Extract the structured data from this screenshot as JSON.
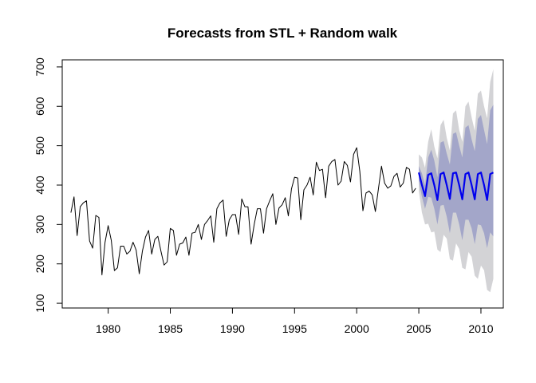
{
  "chart_data": {
    "type": "line",
    "title": "Forecasts from STL +  Random walk",
    "xlabel": "",
    "ylabel": "",
    "xlim": [
      1976.3,
      2011.8
    ],
    "ylim": [
      88,
      718
    ],
    "x_ticks": [
      1980,
      1985,
      1990,
      1995,
      2000,
      2005,
      2010
    ],
    "y_ticks": [
      100,
      200,
      300,
      400,
      500,
      600,
      700
    ],
    "legend": "none",
    "grid": false,
    "frequency": 4,
    "series": [
      {
        "start": 1977.0,
        "color": "#000000",
        "values": [
          330,
          370,
          272,
          345,
          355,
          360,
          258,
          240,
          323,
          318,
          172,
          255,
          297,
          260,
          183,
          190,
          245,
          245,
          225,
          232,
          255,
          235,
          175,
          232,
          268,
          285,
          225,
          262,
          270,
          232,
          197,
          205,
          290,
          285,
          222,
          250,
          253,
          268,
          222,
          278,
          280,
          300,
          262,
          300,
          310,
          322,
          255,
          340,
          355,
          362,
          270,
          312,
          325,
          325,
          275,
          365,
          345,
          345,
          250,
          300,
          340,
          340,
          278,
          340,
          360,
          378,
          300,
          342,
          350,
          368,
          322,
          390,
          420,
          418,
          312,
          388,
          400,
          420,
          375,
          458,
          437,
          440,
          368,
          448,
          460,
          465,
          400,
          410,
          460,
          450,
          408,
          478,
          495,
          435,
          335,
          380,
          385,
          375,
          333,
          390,
          448,
          405,
          392,
          398,
          422,
          430,
          395,
          405,
          445,
          440,
          380,
          392
        ]
      },
      {
        "start": 2005.0,
        "color": "#0000ee",
        "values": [
          432,
          400,
          372,
          426,
          430,
          400,
          362,
          428,
          432,
          400,
          365,
          430,
          432,
          400,
          364,
          428,
          432,
          400,
          364,
          428,
          432,
          400,
          362,
          428,
          432
        ]
      }
    ],
    "intervals": [
      {
        "level": "95",
        "color": "#d3d3d6",
        "start": 2005.0,
        "lower": [
          385,
          330,
          300,
          302,
          280,
          282,
          236,
          230,
          274,
          264,
          212,
          208,
          252,
          238,
          190,
          186,
          230,
          218,
          170,
          162,
          196,
          184,
          134,
          128,
          162
        ],
        "upper": [
          478,
          470,
          444,
          510,
          542,
          498,
          468,
          552,
          566,
          520,
          488,
          582,
          590,
          540,
          510,
          600,
          612,
          572,
          538,
          632,
          640,
          600,
          570,
          662,
          694
        ]
      },
      {
        "level": "80",
        "color": "#a3a6c9",
        "start": 2005.0,
        "lower": [
          410,
          370,
          340,
          370,
          368,
          340,
          300,
          348,
          350,
          320,
          278,
          330,
          330,
          300,
          260,
          312,
          312,
          290,
          250,
          300,
          298,
          278,
          240,
          280,
          270
        ],
        "upper": [
          448,
          430,
          400,
          470,
          490,
          462,
          420,
          508,
          512,
          480,
          452,
          530,
          534,
          500,
          470,
          546,
          552,
          516,
          486,
          568,
          578,
          540,
          504,
          590,
          604
        ]
      }
    ]
  }
}
